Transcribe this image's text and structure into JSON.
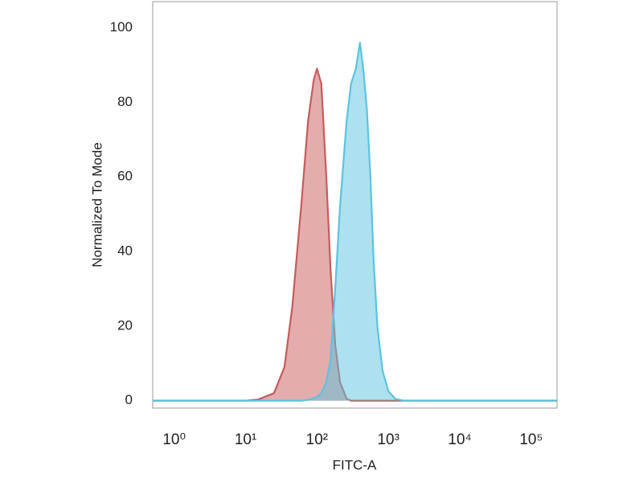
{
  "chart_data": {
    "type": "area",
    "xlabel": "FITC-A",
    "ylabel": "Normalized To Mode",
    "x": [
      0.5,
      1,
      10,
      15,
      25,
      35,
      45,
      60,
      75,
      90,
      100,
      115,
      135,
      155,
      180,
      210,
      260,
      300,
      350,
      400,
      450,
      500,
      560,
      620,
      700,
      830,
      1000,
      1250,
      1600,
      10000,
      230000
    ],
    "series": [
      {
        "color": "#c75b5b",
        "values": [
          0,
          0,
          0,
          0.3,
          2,
          9,
          25,
          52,
          75,
          86,
          89,
          85,
          60,
          35,
          15,
          5,
          0.5,
          0,
          0,
          0,
          0,
          0,
          0,
          0,
          0,
          0,
          0,
          0,
          0,
          0,
          0
        ]
      },
      {
        "color": "#5cc3e0",
        "values": [
          0,
          0,
          0,
          0,
          0,
          0,
          0,
          0,
          0.2,
          0.6,
          1,
          2,
          5,
          11,
          30,
          52,
          75,
          85,
          89,
          96,
          88,
          78,
          60,
          38,
          20,
          8,
          2.5,
          0.5,
          0,
          0,
          0
        ]
      }
    ],
    "xscale": "log",
    "xlim": [
      0.5,
      230000
    ],
    "xticks": [
      {
        "value": 1,
        "label": "10⁰"
      },
      {
        "value": 10,
        "label": "10¹"
      },
      {
        "value": 100,
        "label": "10²"
      },
      {
        "value": 1000,
        "label": "10³"
      },
      {
        "value": 10000,
        "label": "10⁴"
      },
      {
        "value": 100000,
        "label": "10⁵"
      }
    ],
    "ylim": [
      -2,
      107
    ],
    "yticks": [
      0,
      20,
      40,
      60,
      80,
      100
    ],
    "grid": false
  }
}
